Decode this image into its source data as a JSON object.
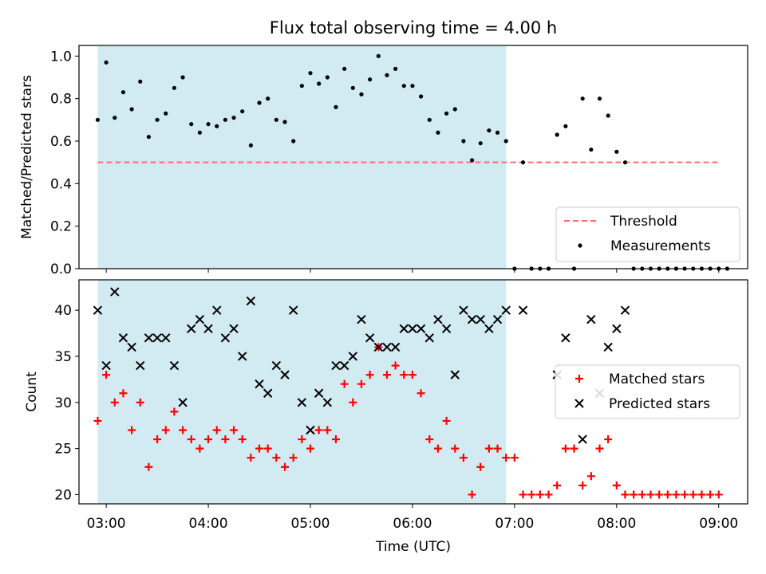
{
  "figure": {
    "title": "Flux total observing time = 4.00 h",
    "xlabel": "Time (UTC)"
  },
  "colors": {
    "shade": "#add8e6",
    "threshold": "#ff6b6b",
    "measurements": "#000000",
    "matched": "#ff0000",
    "predicted": "#000000"
  },
  "chart_data": [
    {
      "type": "scatter",
      "panel": "top",
      "ylabel": "Matched/Predicted stars",
      "xlim": [
        "02:44",
        "09:17"
      ],
      "ylim": [
        0,
        1.05
      ],
      "x_ticks": [
        "03:00",
        "04:00",
        "05:00",
        "06:00",
        "07:00",
        "08:00",
        "09:00"
      ],
      "y_ticks": [
        "0.0",
        "0.2",
        "0.4",
        "0.6",
        "0.8",
        "1.0"
      ],
      "shaded_span": [
        "02:55",
        "06:55"
      ],
      "threshold": {
        "name": "Threshold",
        "x": [
          "02:55",
          "09:00"
        ],
        "y": 0.5
      },
      "legend": {
        "placement": "lower right",
        "entries": [
          "Threshold",
          "Measurements"
        ]
      },
      "series": [
        {
          "name": "Measurements",
          "points": [
            [
              "02:55",
              0.7
            ],
            [
              "03:00",
              0.97
            ],
            [
              "03:05",
              0.71
            ],
            [
              "03:10",
              0.83
            ],
            [
              "03:15",
              0.75
            ],
            [
              "03:20",
              0.88
            ],
            [
              "03:25",
              0.62
            ],
            [
              "03:30",
              0.7
            ],
            [
              "03:35",
              0.73
            ],
            [
              "03:40",
              0.85
            ],
            [
              "03:45",
              0.9
            ],
            [
              "03:50",
              0.68
            ],
            [
              "03:55",
              0.64
            ],
            [
              "04:00",
              0.68
            ],
            [
              "04:05",
              0.67
            ],
            [
              "04:10",
              0.7
            ],
            [
              "04:15",
              0.71
            ],
            [
              "04:20",
              0.74
            ],
            [
              "04:25",
              0.58
            ],
            [
              "04:30",
              0.78
            ],
            [
              "04:35",
              0.8
            ],
            [
              "04:40",
              0.7
            ],
            [
              "04:45",
              0.69
            ],
            [
              "04:50",
              0.6
            ],
            [
              "04:55",
              0.86
            ],
            [
              "05:00",
              0.92
            ],
            [
              "05:05",
              0.87
            ],
            [
              "05:10",
              0.9
            ],
            [
              "05:15",
              0.76
            ],
            [
              "05:20",
              0.94
            ],
            [
              "05:25",
              0.85
            ],
            [
              "05:30",
              0.82
            ],
            [
              "05:35",
              0.89
            ],
            [
              "05:40",
              1.0
            ],
            [
              "05:45",
              0.91
            ],
            [
              "05:50",
              0.94
            ],
            [
              "05:55",
              0.86
            ],
            [
              "06:00",
              0.86
            ],
            [
              "06:05",
              0.81
            ],
            [
              "06:10",
              0.7
            ],
            [
              "06:15",
              0.64
            ],
            [
              "06:20",
              0.73
            ],
            [
              "06:25",
              0.75
            ],
            [
              "06:30",
              0.6
            ],
            [
              "06:35",
              0.51
            ],
            [
              "06:40",
              0.59
            ],
            [
              "06:45",
              0.65
            ],
            [
              "06:50",
              0.64
            ],
            [
              "06:55",
              0.6
            ],
            [
              "07:00",
              0.0
            ],
            [
              "07:05",
              0.5
            ],
            [
              "07:10",
              0.0
            ],
            [
              "07:15",
              0.0
            ],
            [
              "07:20",
              0.0
            ],
            [
              "07:25",
              0.63
            ],
            [
              "07:30",
              0.67
            ],
            [
              "07:35",
              0.0
            ],
            [
              "07:40",
              0.8
            ],
            [
              "07:45",
              0.56
            ],
            [
              "07:50",
              0.8
            ],
            [
              "07:55",
              0.72
            ],
            [
              "08:00",
              0.55
            ],
            [
              "08:05",
              0.5
            ],
            [
              "08:10",
              0.0
            ],
            [
              "08:15",
              0.0
            ],
            [
              "08:20",
              0.0
            ],
            [
              "08:25",
              0.0
            ],
            [
              "08:30",
              0.0
            ],
            [
              "08:35",
              0.0
            ],
            [
              "08:40",
              0.0
            ],
            [
              "08:45",
              0.0
            ],
            [
              "08:50",
              0.0
            ],
            [
              "08:55",
              0.0
            ],
            [
              "09:00",
              0.0
            ],
            [
              "09:05",
              0.0
            ]
          ]
        }
      ]
    },
    {
      "type": "scatter",
      "panel": "bottom",
      "ylabel": "Count",
      "xlim": [
        "02:44",
        "09:17"
      ],
      "ylim": [
        19,
        43.3
      ],
      "x_ticks": [
        "03:00",
        "04:00",
        "05:00",
        "06:00",
        "07:00",
        "08:00",
        "09:00"
      ],
      "y_ticks": [
        "20",
        "25",
        "30",
        "35",
        "40"
      ],
      "shaded_span": [
        "02:55",
        "06:55"
      ],
      "legend": {
        "placement": "center right",
        "entries": [
          "Matched stars",
          "Predicted stars"
        ]
      },
      "series": [
        {
          "name": "Matched stars",
          "marker": "plus",
          "points": [
            [
              "02:55",
              28
            ],
            [
              "03:00",
              33
            ],
            [
              "03:05",
              30
            ],
            [
              "03:10",
              31
            ],
            [
              "03:15",
              27
            ],
            [
              "03:20",
              30
            ],
            [
              "03:25",
              23
            ],
            [
              "03:30",
              26
            ],
            [
              "03:35",
              27
            ],
            [
              "03:40",
              29
            ],
            [
              "03:45",
              27
            ],
            [
              "03:50",
              26
            ],
            [
              "03:55",
              25
            ],
            [
              "04:00",
              26
            ],
            [
              "04:05",
              27
            ],
            [
              "04:10",
              26
            ],
            [
              "04:15",
              27
            ],
            [
              "04:20",
              26
            ],
            [
              "04:25",
              24
            ],
            [
              "04:30",
              25
            ],
            [
              "04:35",
              25
            ],
            [
              "04:40",
              24
            ],
            [
              "04:45",
              23
            ],
            [
              "04:50",
              24
            ],
            [
              "04:55",
              26
            ],
            [
              "05:00",
              25
            ],
            [
              "05:05",
              27
            ],
            [
              "05:10",
              27
            ],
            [
              "05:15",
              26
            ],
            [
              "05:20",
              32
            ],
            [
              "05:25",
              30
            ],
            [
              "05:30",
              32
            ],
            [
              "05:35",
              33
            ],
            [
              "05:40",
              36
            ],
            [
              "05:45",
              33
            ],
            [
              "05:50",
              34
            ],
            [
              "05:55",
              33
            ],
            [
              "06:00",
              33
            ],
            [
              "06:05",
              31
            ],
            [
              "06:10",
              26
            ],
            [
              "06:15",
              25
            ],
            [
              "06:20",
              28
            ],
            [
              "06:25",
              25
            ],
            [
              "06:30",
              24
            ],
            [
              "06:35",
              20
            ],
            [
              "06:40",
              23
            ],
            [
              "06:45",
              25
            ],
            [
              "06:50",
              25
            ],
            [
              "06:55",
              24
            ],
            [
              "07:00",
              24
            ],
            [
              "07:05",
              20
            ],
            [
              "07:10",
              20
            ],
            [
              "07:15",
              20
            ],
            [
              "07:20",
              20
            ],
            [
              "07:25",
              21
            ],
            [
              "07:30",
              25
            ],
            [
              "07:35",
              25
            ],
            [
              "07:40",
              21
            ],
            [
              "07:45",
              22
            ],
            [
              "07:50",
              25
            ],
            [
              "07:55",
              26
            ],
            [
              "08:00",
              21
            ],
            [
              "08:05",
              20
            ],
            [
              "08:10",
              20
            ],
            [
              "08:15",
              20
            ],
            [
              "08:20",
              20
            ],
            [
              "08:25",
              20
            ],
            [
              "08:30",
              20
            ],
            [
              "08:35",
              20
            ],
            [
              "08:40",
              20
            ],
            [
              "08:45",
              20
            ],
            [
              "08:50",
              20
            ],
            [
              "08:55",
              20
            ],
            [
              "09:00",
              20
            ]
          ]
        },
        {
          "name": "Predicted stars",
          "marker": "x",
          "points": [
            [
              "02:55",
              40
            ],
            [
              "03:00",
              34
            ],
            [
              "03:05",
              42
            ],
            [
              "03:10",
              37
            ],
            [
              "03:15",
              36
            ],
            [
              "03:20",
              34
            ],
            [
              "03:25",
              37
            ],
            [
              "03:30",
              37
            ],
            [
              "03:35",
              37
            ],
            [
              "03:40",
              34
            ],
            [
              "03:45",
              30
            ],
            [
              "03:50",
              38
            ],
            [
              "03:55",
              39
            ],
            [
              "04:00",
              38
            ],
            [
              "04:05",
              40
            ],
            [
              "04:10",
              37
            ],
            [
              "04:15",
              38
            ],
            [
              "04:20",
              35
            ],
            [
              "04:25",
              41
            ],
            [
              "04:30",
              32
            ],
            [
              "04:35",
              31
            ],
            [
              "04:40",
              34
            ],
            [
              "04:45",
              33
            ],
            [
              "04:50",
              40
            ],
            [
              "04:55",
              30
            ],
            [
              "05:00",
              27
            ],
            [
              "05:05",
              31
            ],
            [
              "05:10",
              30
            ],
            [
              "05:15",
              34
            ],
            [
              "05:20",
              34
            ],
            [
              "05:25",
              35
            ],
            [
              "05:30",
              39
            ],
            [
              "05:35",
              37
            ],
            [
              "05:40",
              36
            ],
            [
              "05:45",
              36
            ],
            [
              "05:50",
              36
            ],
            [
              "05:55",
              38
            ],
            [
              "06:00",
              38
            ],
            [
              "06:05",
              38
            ],
            [
              "06:10",
              37
            ],
            [
              "06:15",
              39
            ],
            [
              "06:20",
              38
            ],
            [
              "06:25",
              33
            ],
            [
              "06:30",
              40
            ],
            [
              "06:35",
              39
            ],
            [
              "06:40",
              39
            ],
            [
              "06:45",
              38
            ],
            [
              "06:50",
              39
            ],
            [
              "06:55",
              40
            ],
            [
              "07:05",
              40
            ],
            [
              "07:25",
              33
            ],
            [
              "07:30",
              37
            ],
            [
              "07:40",
              26
            ],
            [
              "07:45",
              39
            ],
            [
              "07:50",
              31
            ],
            [
              "07:55",
              36
            ],
            [
              "08:00",
              38
            ],
            [
              "08:05",
              40
            ]
          ]
        }
      ]
    }
  ]
}
